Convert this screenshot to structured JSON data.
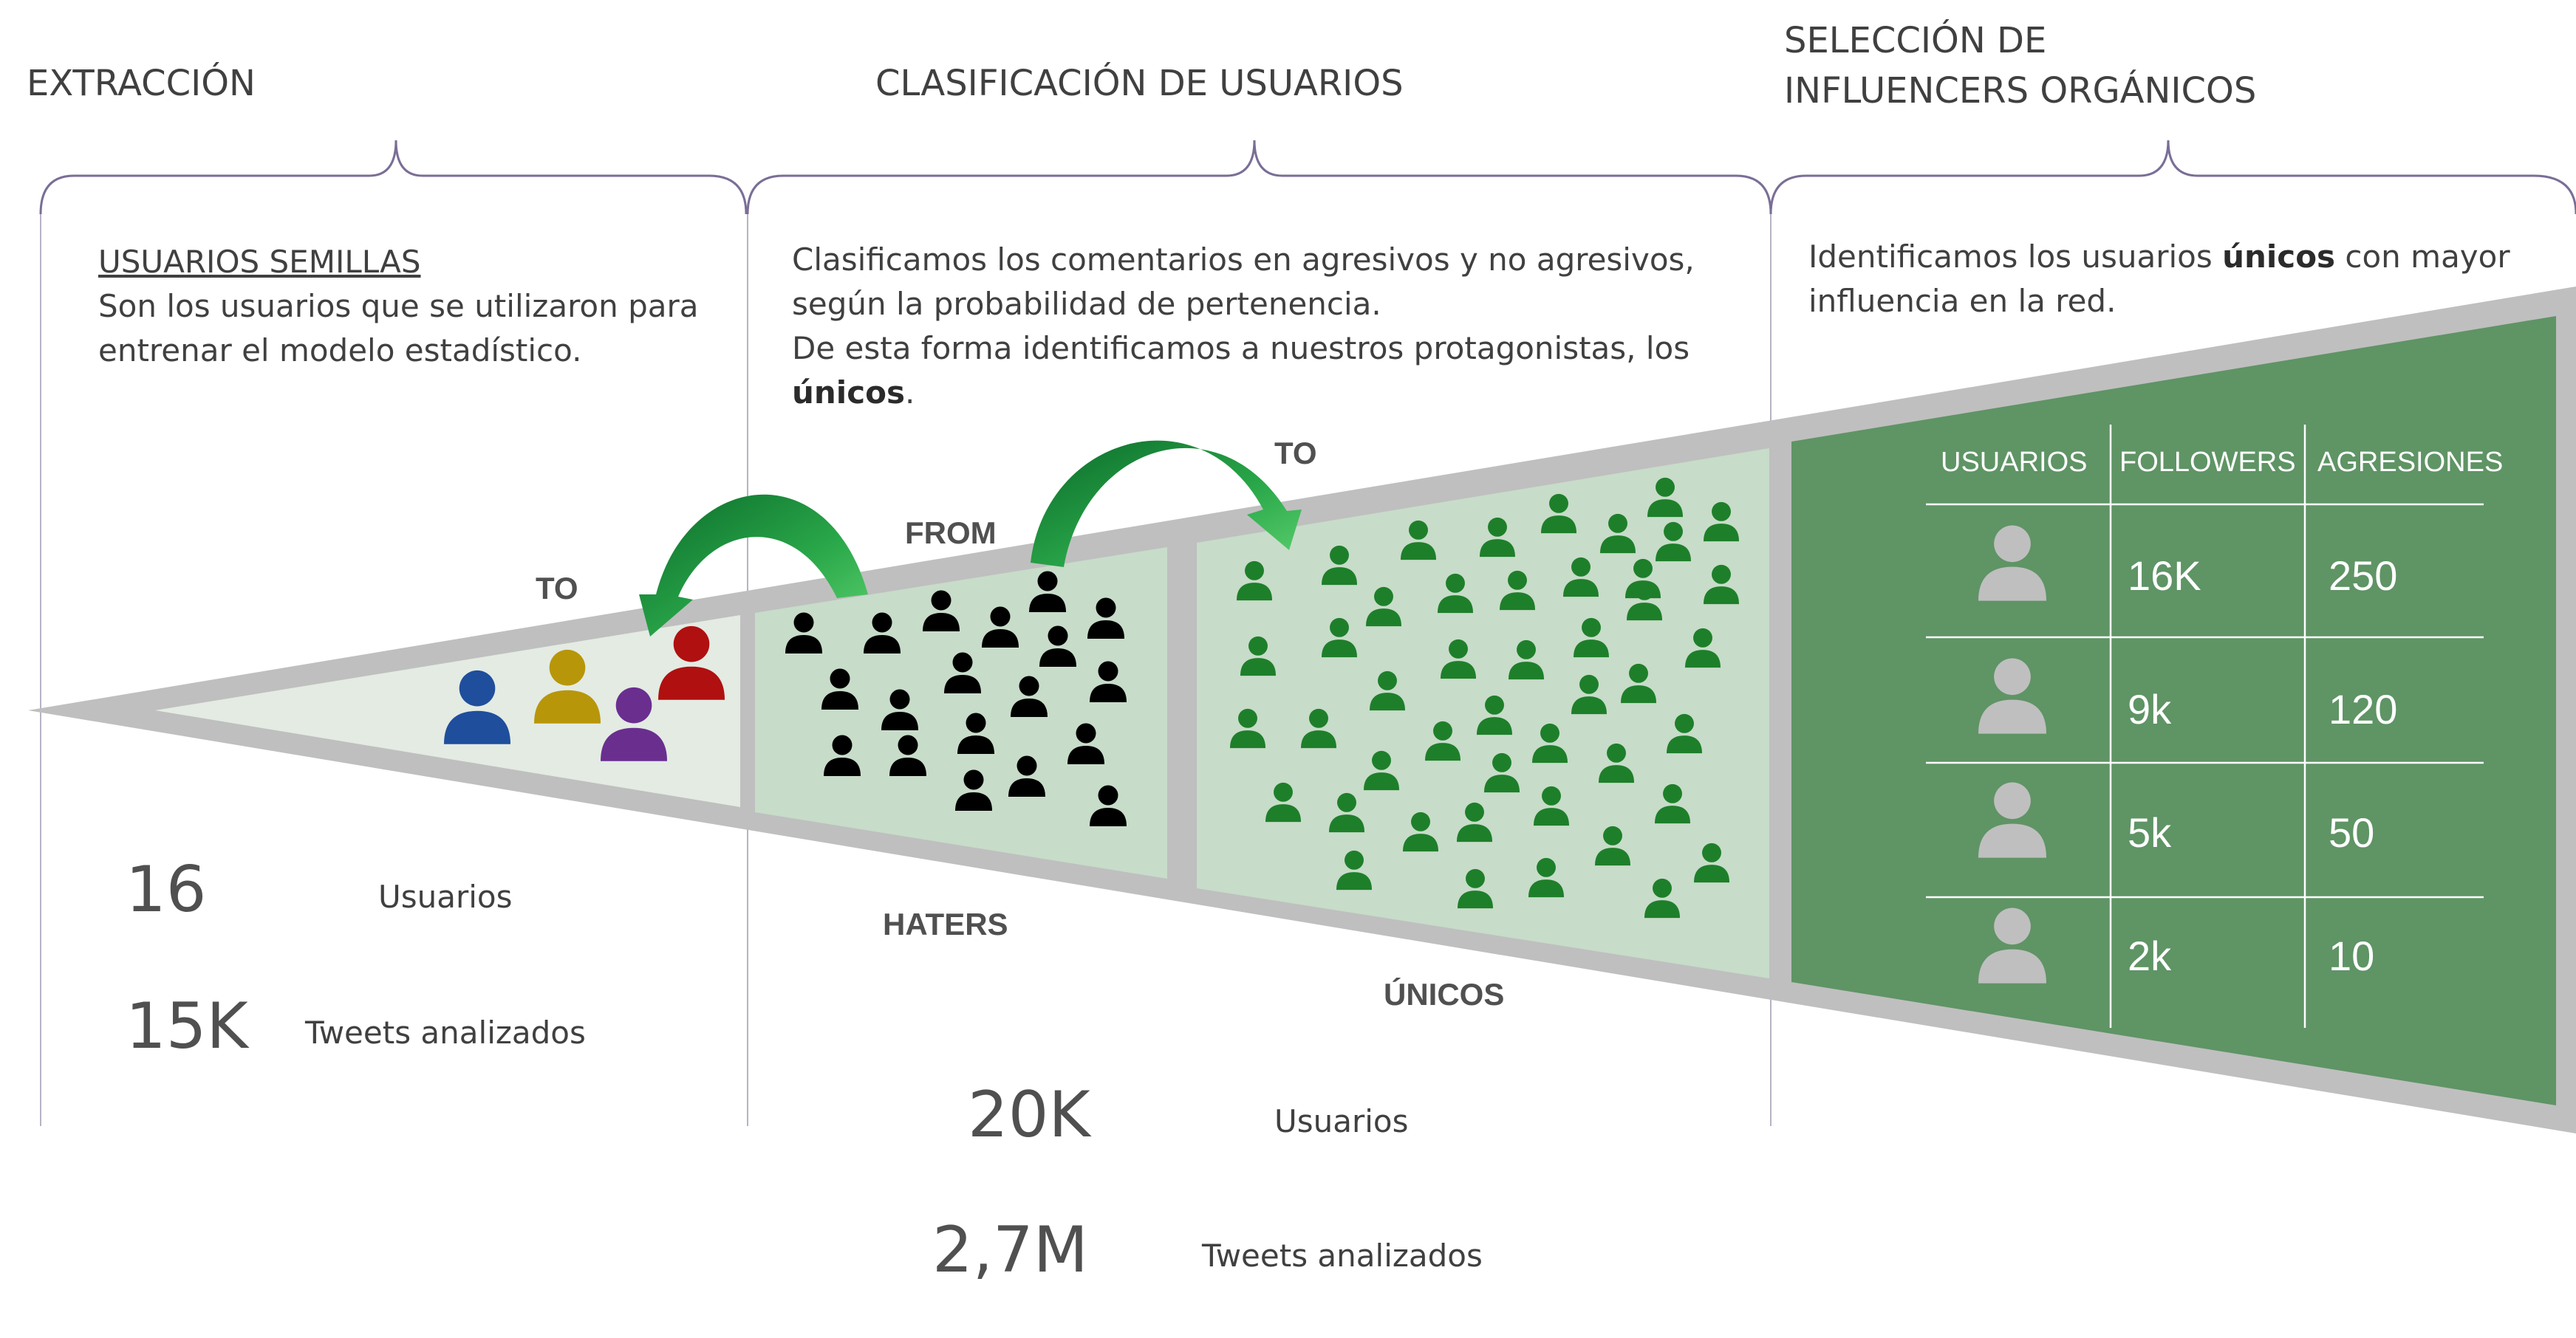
{
  "phases": [
    {
      "title_lines": [
        "EXTRACCIÓN"
      ]
    },
    {
      "title_lines": [
        "CLASIFICACIÓN DE USUARIOS"
      ]
    },
    {
      "title_lines": [
        "SELECCIÓN DE",
        "INFLUENCERS ORGÁNICOS"
      ]
    }
  ],
  "extraction": {
    "heading": "USUARIOS SEMILLAS",
    "desc_lines": [
      "Son los usuarios que se utilizaron para",
      "entrenar el modelo estadístico."
    ],
    "stats": [
      {
        "value": "16",
        "label": "Usuarios"
      },
      {
        "value": "15K",
        "label": "Tweets analizados"
      }
    ]
  },
  "classification": {
    "line1": "Clasificamos los comentarios en agresivos y no agresivos,",
    "line2": "según la probabilidad de pertenencia.",
    "line3": "De esta forma identificamos a nuestros protagonistas, los",
    "line4_bold": "únicos",
    "line4_tail": ".",
    "stats": [
      {
        "value": "20K",
        "label": "Usuarios"
      },
      {
        "value": "2,7M",
        "label": "Tweets analizados"
      }
    ]
  },
  "selection": {
    "line1_pre": "Identificamos los usuarios ",
    "line1_bold": "únicos",
    "line1_post": " con mayor",
    "line2": "influencia en la red."
  },
  "flow_labels": {
    "to_left": "TO",
    "from": "FROM",
    "to_right": "TO",
    "haters": "HATERS",
    "unicos": "ÚNICOS"
  },
  "table": {
    "headers": [
      "USUARIOS",
      "FOLLOWERS",
      "AGRESIONES"
    ],
    "rows": [
      {
        "avatar": "user-icon",
        "followers": "16K",
        "aggressions": "250"
      },
      {
        "avatar": "user-icon",
        "followers": "9k",
        "aggressions": "120"
      },
      {
        "avatar": "user-icon",
        "followers": "5k",
        "aggressions": "50"
      },
      {
        "avatar": "user-icon",
        "followers": "2k",
        "aggressions": "10"
      }
    ]
  },
  "colors": {
    "funnel_border": "#bfbfbf",
    "seed_fill": "#e3ebe3",
    "classification_fill": "#c7dcc9",
    "influencer_fill": "#5f9465",
    "arrow_green": "#2aa84a",
    "haters_icon": "#000000",
    "unicos_icon": "#1e7f2a",
    "seed_blue": "#1f4e9c",
    "seed_gold": "#b8960a",
    "seed_red": "#b01010",
    "seed_purple": "#6a2e8f",
    "table_avatar": "#bfbfbf"
  }
}
